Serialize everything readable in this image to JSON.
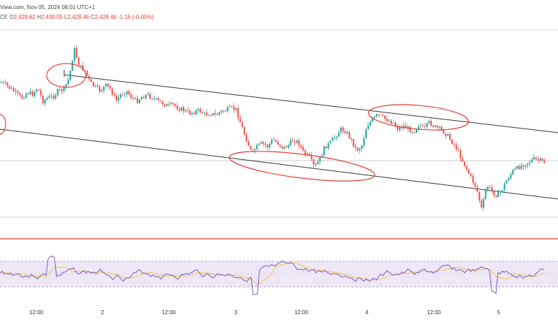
{
  "header": {
    "source": "View.com, Nov 05, 2024 08:01 UTC+1",
    "ohlc_prefix": "CE",
    "open_key": "O",
    "open": "2,429.62",
    "high_key": "H",
    "high": "2,430.05",
    "low_key": "L",
    "low": "2,428.46",
    "close_key": "C",
    "close": "2,428.46",
    "change": "-1.16 (-0.05%)"
  },
  "colors": {
    "up": "#26a69a",
    "down": "#ef5350",
    "annotation": "#e53935",
    "channel": "#333333",
    "rsi_line": "#7e57c2",
    "rsi_ma": "#f5c542",
    "rsi_band": "#ede7f6"
  },
  "chart_data": [
    {
      "type": "candlestick",
      "x_ticks": [
        "12:00",
        "2",
        "12:00",
        "3",
        "12:00",
        "4",
        "12:00",
        "5"
      ],
      "close_path": [
        118,
        122,
        128,
        135,
        140,
        132,
        135,
        125,
        145,
        140,
        138,
        130,
        128,
        112,
        70,
        95,
        100,
        118,
        125,
        130,
        122,
        128,
        145,
        135,
        130,
        140,
        145,
        138,
        136,
        140,
        145,
        148,
        152,
        150,
        155,
        158,
        162,
        160,
        158,
        164,
        162,
        165,
        160,
        158,
        155,
        157,
        180,
        200,
        220,
        210,
        205,
        210,
        200,
        205,
        212,
        208,
        200,
        205,
        220,
        225,
        240,
        228,
        210,
        205,
        195,
        185,
        188,
        200,
        215,
        210,
        180,
        172,
        165,
        168,
        172,
        175,
        185,
        180,
        185,
        188,
        178,
        185,
        175,
        182,
        185,
        190,
        200,
        210,
        225,
        240,
        255,
        270,
        300,
        265,
        275,
        280,
        270,
        255,
        245,
        240,
        235,
        232,
        228,
        230,
        232
      ],
      "channel": "descending parallel channel",
      "annotations": "red ellipses at touch points",
      "horizontal_lines": [
        "gray support",
        "red level"
      ]
    },
    {
      "type": "line",
      "indicator": "RSI with moving average",
      "band": [
        30,
        70
      ],
      "ylim": [
        0,
        100
      ]
    }
  ]
}
